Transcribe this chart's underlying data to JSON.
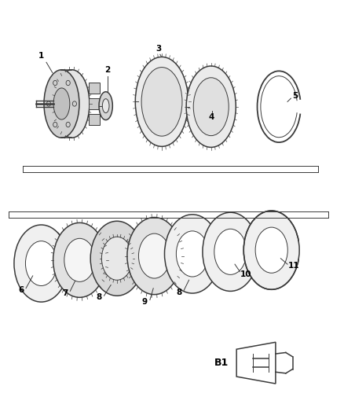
{
  "background_color": "#ffffff",
  "line_color": "#3a3a3a",
  "label_color": "#000000",
  "fig_width": 4.38,
  "fig_height": 5.33,
  "b1_label": "B1"
}
